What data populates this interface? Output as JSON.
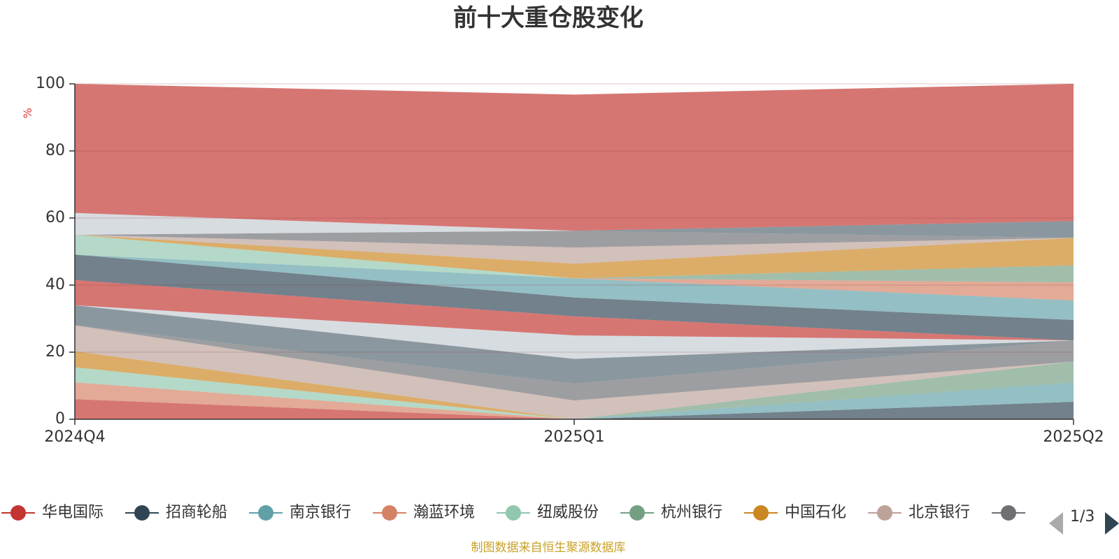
{
  "chart_data": {
    "type": "area",
    "stacked": true,
    "title": "前十大重仓股变化",
    "ylabel": "%",
    "x": [
      "2024Q4",
      "2025Q1",
      "2025Q2"
    ],
    "ylim": [
      0,
      100
    ],
    "yticks": [
      0,
      20,
      40,
      60,
      80,
      100
    ],
    "grid": true,
    "series": [
      {
        "name": "华电国际",
        "color": "#c23531",
        "values": [
          6.0,
          0.0,
          0.0
        ]
      },
      {
        "name": "招商轮船",
        "color": "#2f4554",
        "values": [
          0.0,
          0.0,
          5.2
        ]
      },
      {
        "name": "南京银行",
        "color": "#61a0a8",
        "values": [
          0.0,
          0.0,
          5.8
        ]
      },
      {
        "name": "瀚蓝环境",
        "color": "#d48265",
        "values": [
          5.0,
          0.0,
          0.0
        ]
      },
      {
        "name": "纽威股份",
        "color": "#91c7ae",
        "values": [
          4.5,
          0.0,
          0.0
        ]
      },
      {
        "name": "杭州银行",
        "color": "#749f83",
        "values": [
          0.0,
          0.0,
          6.2
        ]
      },
      {
        "name": "中国石化",
        "color": "#ca8622",
        "values": [
          4.8,
          0.0,
          0.0
        ]
      },
      {
        "name": "北京银行",
        "color": "#bda29a",
        "values": [
          7.7,
          5.6,
          0.0
        ]
      },
      {
        "name": "",
        "color": "#6e7074",
        "values": [
          0.0,
          5.0,
          6.3
        ]
      },
      {
        "name": "",
        "color": "#546570",
        "values": [
          6.0,
          7.4,
          0.0
        ]
      },
      {
        "name": "",
        "color": "#c4ccd3",
        "values": [
          0.0,
          7.0,
          0.0
        ]
      },
      {
        "name": "",
        "color": "#c23531",
        "values": [
          7.5,
          5.7,
          0.0
        ]
      },
      {
        "name": "",
        "color": "#2f4554",
        "values": [
          7.6,
          5.6,
          6.1
        ]
      },
      {
        "name": "",
        "color": "#61a0a8",
        "values": [
          0.0,
          5.7,
          5.8
        ]
      },
      {
        "name": "",
        "color": "#d48265",
        "values": [
          0.0,
          0.0,
          5.4
        ]
      },
      {
        "name": "",
        "color": "#749f83",
        "values": [
          0.0,
          0.0,
          5.1
        ]
      },
      {
        "name": "",
        "color": "#91c7ae",
        "values": [
          5.9,
          0.0,
          0.0
        ]
      },
      {
        "name": "",
        "color": "#ca8622",
        "values": [
          0.0,
          4.4,
          8.2
        ]
      },
      {
        "name": "",
        "color": "#bda29a",
        "values": [
          0.0,
          4.8,
          0.0
        ]
      },
      {
        "name": "",
        "color": "#6e7074",
        "values": [
          0.0,
          5.0,
          0.0
        ]
      },
      {
        "name": "",
        "color": "#546570",
        "values": [
          0.0,
          0.0,
          5.0
        ]
      },
      {
        "name": "",
        "color": "#c4ccd3",
        "values": [
          6.5,
          0.0,
          0.0
        ]
      },
      {
        "name": "",
        "color": "#c23531",
        "values": [
          38.5,
          40.6,
          40.9
        ]
      }
    ]
  },
  "legend": {
    "items": [
      {
        "name": "华电国际",
        "color": "#c23531"
      },
      {
        "name": "招商轮船",
        "color": "#2f4554"
      },
      {
        "name": "南京银行",
        "color": "#61a0a8"
      },
      {
        "name": "瀚蓝环境",
        "color": "#d48265"
      },
      {
        "name": "纽威股份",
        "color": "#91c7ae"
      },
      {
        "name": "杭州银行",
        "color": "#749f83"
      },
      {
        "name": "中国石化",
        "color": "#ca8622"
      },
      {
        "name": "北京银行",
        "color": "#bda29a"
      },
      {
        "name": "",
        "color": "#6e7074"
      }
    ],
    "page_indicator": "1/3"
  },
  "source_note": "制图数据来自恒生聚源数据库"
}
